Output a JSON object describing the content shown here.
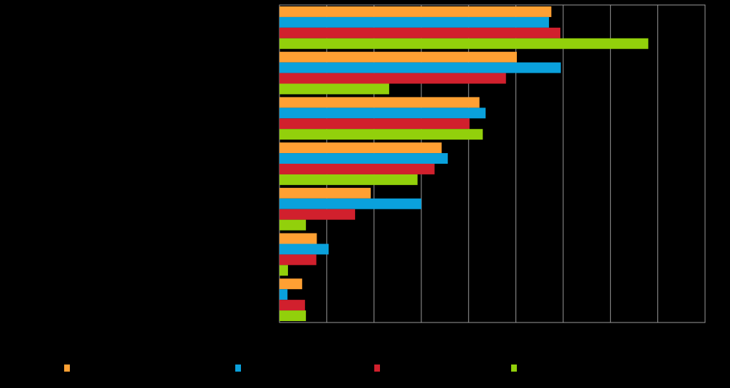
{
  "chart_data": {
    "type": "bar",
    "orientation": "horizontal",
    "categories": [
      "",
      "",
      "",
      "",
      "",
      "",
      ""
    ],
    "series": [
      {
        "color": "#FFA033",
        "values": [
          57.5,
          50.2,
          42.3,
          34.3,
          19.3,
          7.9,
          4.8
        ]
      },
      {
        "color": "#0AA1DC",
        "values": [
          57.0,
          59.5,
          43.6,
          35.6,
          30.0,
          10.4,
          1.7
        ]
      },
      {
        "color": "#D1202D",
        "values": [
          59.4,
          47.9,
          40.2,
          32.8,
          16.0,
          7.8,
          5.4
        ]
      },
      {
        "color": "#92D00B",
        "values": [
          78.0,
          23.2,
          43.0,
          29.2,
          5.6,
          1.8,
          5.6
        ]
      }
    ],
    "xlim": [
      0,
      90
    ],
    "x_gridlines": [
      0,
      10,
      20,
      30,
      40,
      50,
      60,
      70,
      80,
      90
    ],
    "grid": true,
    "legend_position": "bottom",
    "background": "#000000",
    "axis_color": "#9a9a9a"
  }
}
